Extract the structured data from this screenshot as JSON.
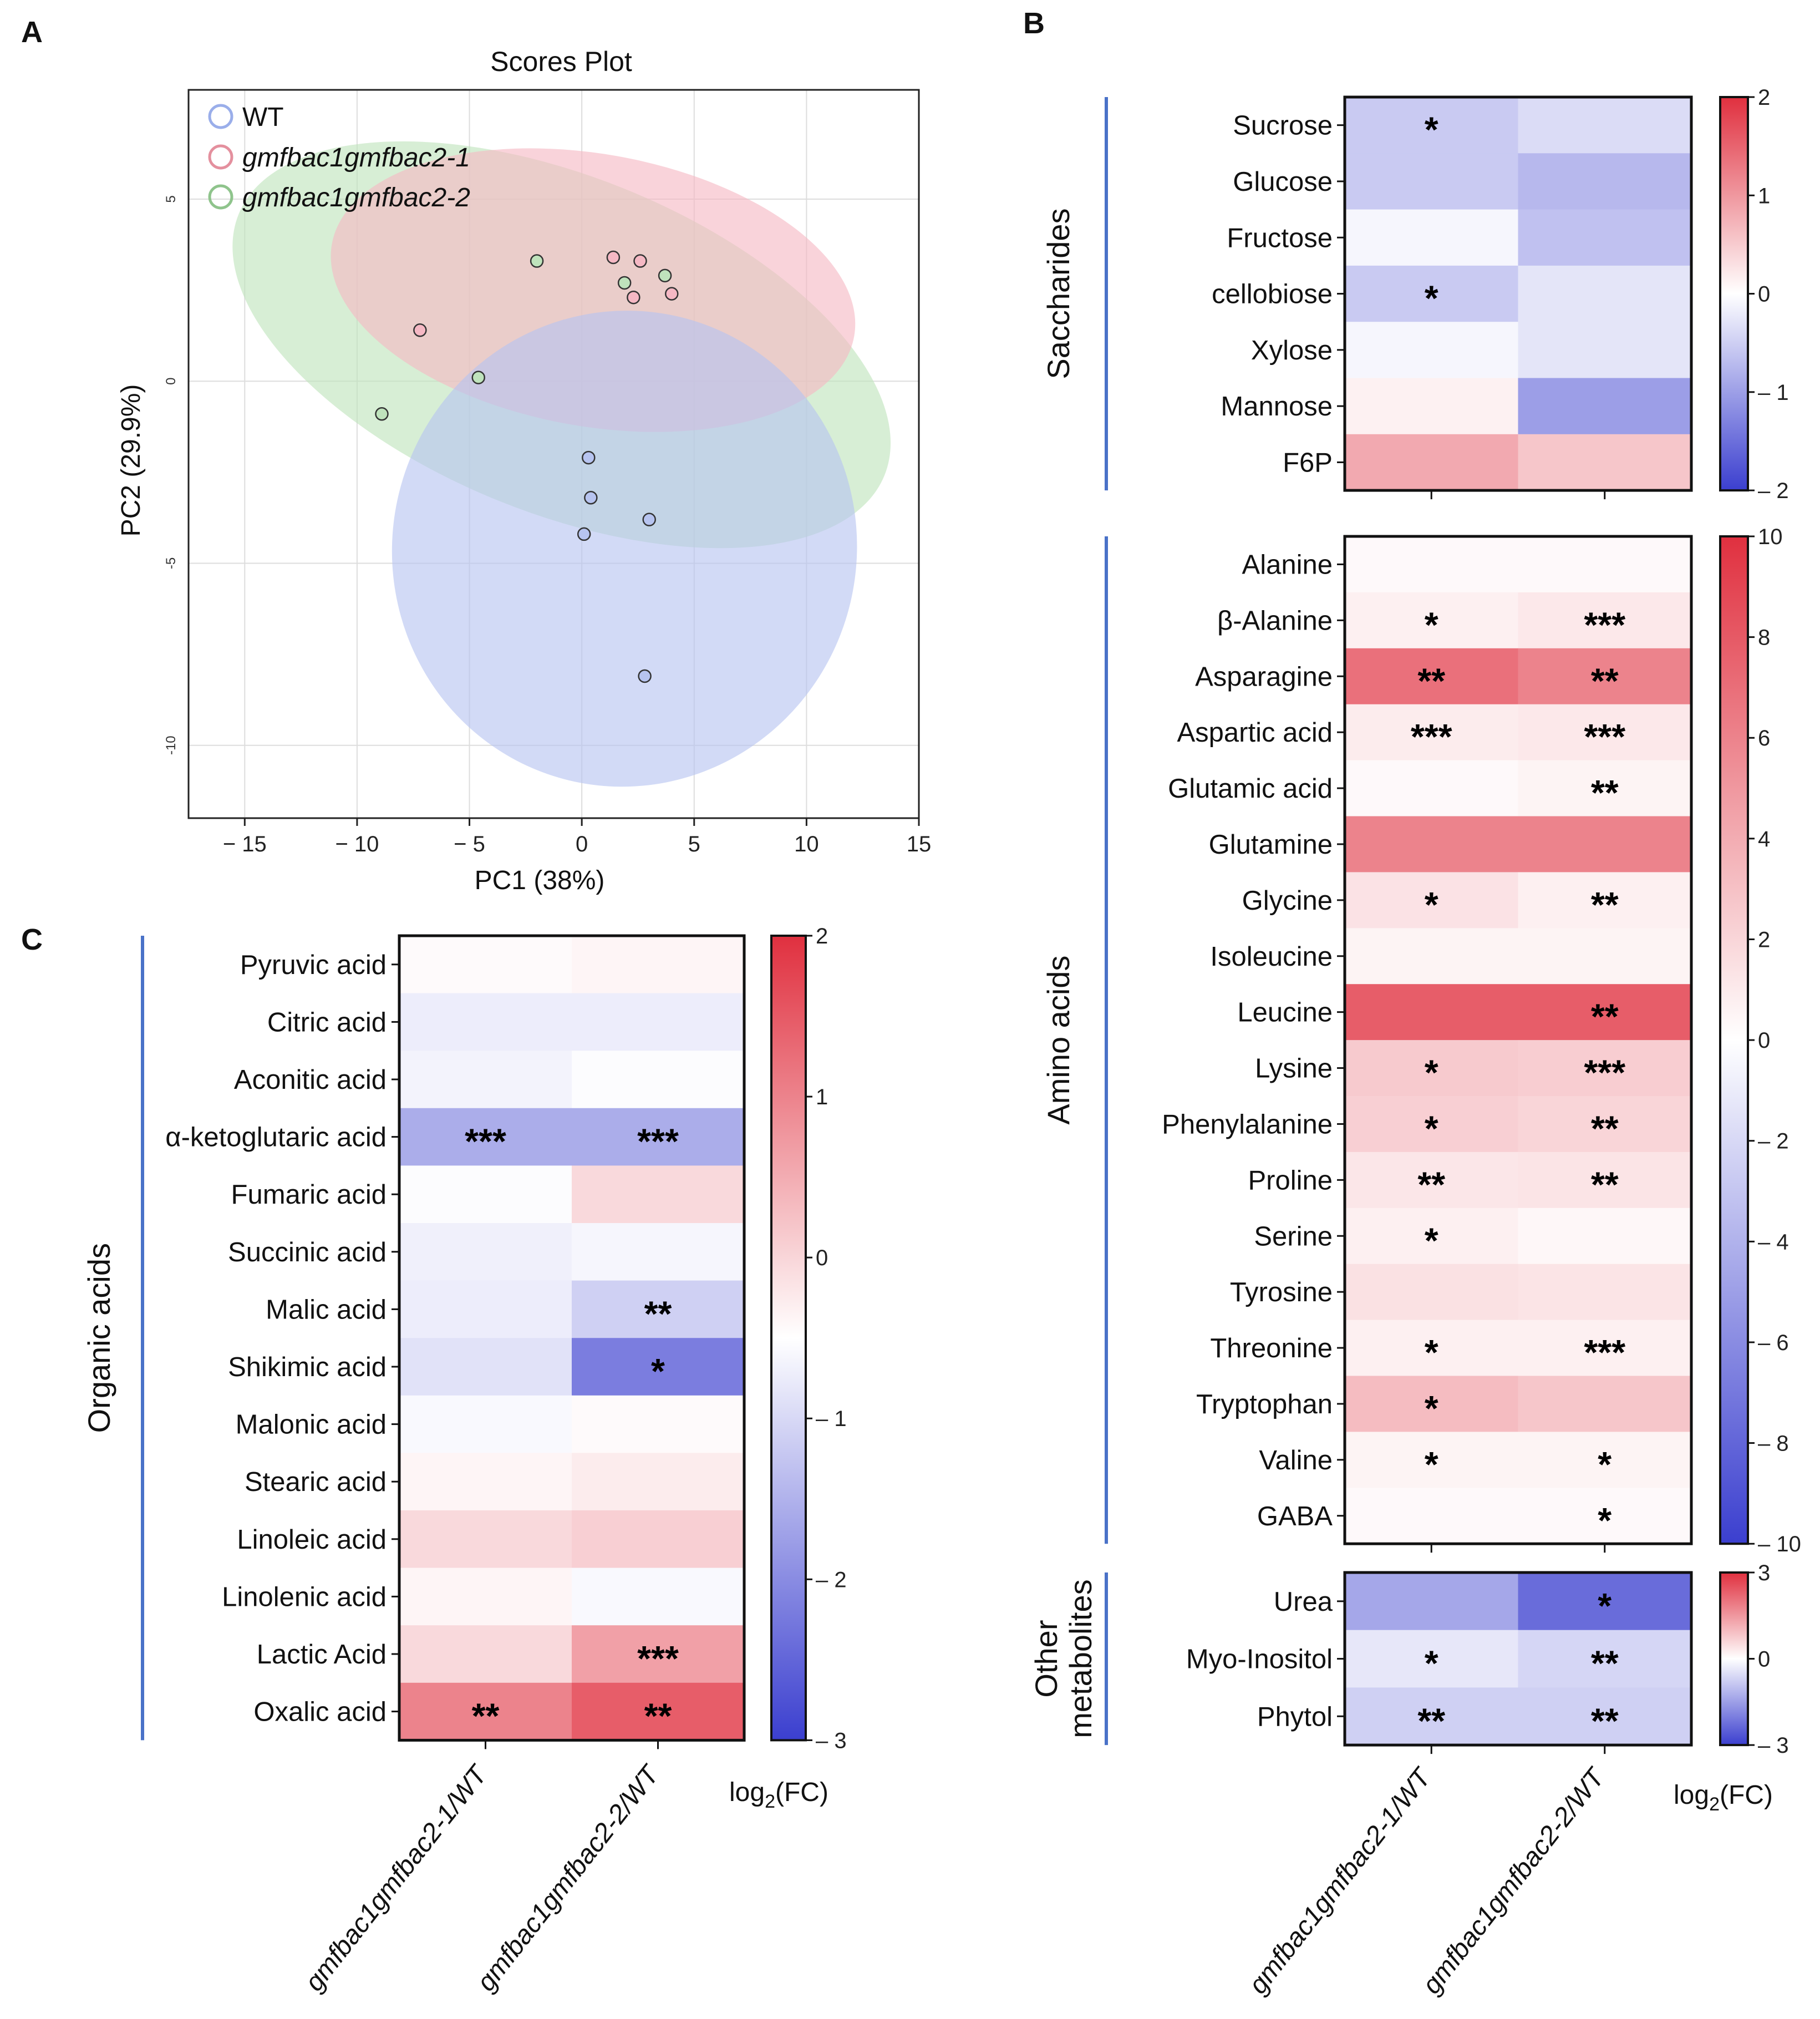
{
  "figure": {
    "panel_labels": [
      "A",
      "B",
      "C"
    ],
    "legend_unit_label": "log",
    "legend_unit_sub": "2",
    "legend_unit_tail": "(FC)"
  },
  "colors": {
    "wt": "#5b7fd4",
    "line1": "#d9535f",
    "line2": "#4fa64f",
    "wt_fill": "#b7c4f0",
    "line1_fill": "#f5b8c4",
    "line2_fill": "#bfe3bc",
    "heat_neg": "#3b3fcf",
    "heat_mid": "#ffffff",
    "heat_pos": "#e0303f",
    "group_bar": "#4a72c8"
  },
  "chart_data": [
    {
      "id": "pca",
      "type": "scatter",
      "title": "Scores Plot",
      "xlabel": "PC1 (38%)",
      "ylabel": "PC2 (29.9%)",
      "xlim": [
        -17.5,
        15
      ],
      "ylim": [
        -12,
        8
      ],
      "xticks": [
        -15,
        -10,
        -5,
        0,
        5,
        10,
        15
      ],
      "xtick_labels": [
        "− 15",
        "− 10",
        "− 5",
        "0",
        "5",
        "10",
        "15"
      ],
      "yticks": [
        5,
        0,
        -5,
        -10
      ],
      "ytick_labels": [
        "5",
        "0",
        "-5",
        "-10"
      ],
      "grid": true,
      "legend_position": "top-left",
      "series": [
        {
          "name": "WT",
          "italic": false,
          "color_key": "wt",
          "points": [
            [
              0.3,
              -2.1
            ],
            [
              0.4,
              -3.2
            ],
            [
              0.1,
              -4.2
            ],
            [
              3.0,
              -3.8
            ],
            [
              2.8,
              -8.1
            ]
          ],
          "ellipse": {
            "center": [
              1.9,
              -4.6
            ],
            "rx": 10.6,
            "ry": 2.9,
            "angle_deg": -78
          }
        },
        {
          "name": "gmfbac1gmfbac2-1",
          "italic": true,
          "color_key": "line1",
          "points": [
            [
              1.4,
              3.4
            ],
            [
              2.6,
              3.3
            ],
            [
              2.3,
              2.3
            ],
            [
              4.0,
              2.4
            ],
            [
              -7.2,
              1.4
            ]
          ],
          "ellipse": {
            "center": [
              0.5,
              2.5
            ],
            "rx": 11.8,
            "ry": 1.7,
            "angle_deg": 10
          }
        },
        {
          "name": "gmfbac1gmfbac2-2",
          "italic": true,
          "color_key": "line2",
          "points": [
            [
              -2.0,
              3.3
            ],
            [
              1.9,
              2.7
            ],
            [
              3.7,
              2.9
            ],
            [
              -4.6,
              0.1
            ],
            [
              -8.9,
              -0.9
            ]
          ],
          "ellipse": {
            "center": [
              -0.9,
              1.0
            ],
            "rx": 15.5,
            "ry": 2.1,
            "angle_deg": 22
          }
        }
      ]
    },
    {
      "id": "organic",
      "type": "heatmap",
      "panel": "C",
      "group_label": "Organic acids",
      "columns": [
        "gmfbac1gmfbac2-1/WT",
        "gmfbac1gmfbac2-2/WT"
      ],
      "colorbar": {
        "min": -3,
        "max": 2,
        "ticks": [
          2,
          1,
          0,
          -1,
          -2,
          -3
        ],
        "tick_labels": [
          "2",
          "1",
          "0",
          "– 1",
          "– 2",
          "– 3"
        ]
      },
      "rows": [
        "Pyruvic acid",
        "Citric acid",
        "Aconitic acid",
        "α-ketoglutaric acid",
        "Fumaric acid",
        "Succinic acid",
        "Malic acid",
        "Shikimic acid",
        "Malonic acid",
        "Stearic acid",
        "Linoleic acid",
        "Linolenic acid",
        "Lactic Acid",
        "Oxalic acid"
      ],
      "values": [
        [
          0.05,
          0.1
        ],
        [
          -0.3,
          -0.3
        ],
        [
          -0.2,
          -0.05
        ],
        [
          -1.4,
          -1.4
        ],
        [
          -0.05,
          0.4
        ],
        [
          -0.25,
          -0.15
        ],
        [
          -0.3,
          -0.8
        ],
        [
          -0.5,
          -2.2
        ],
        [
          -0.1,
          0.05
        ],
        [
          0.1,
          0.2
        ],
        [
          0.4,
          0.5
        ],
        [
          0.1,
          -0.1
        ],
        [
          0.4,
          1.0
        ],
        [
          1.3,
          1.7
        ]
      ],
      "stars": [
        [
          "",
          ""
        ],
        [
          "",
          ""
        ],
        [
          "",
          ""
        ],
        [
          "***",
          "***"
        ],
        [
          "",
          ""
        ],
        [
          "",
          ""
        ],
        [
          "",
          "**"
        ],
        [
          "",
          "*"
        ],
        [
          "",
          ""
        ],
        [
          "",
          ""
        ],
        [
          "",
          ""
        ],
        [
          "",
          ""
        ],
        [
          "",
          "***"
        ],
        [
          "**",
          "**"
        ]
      ]
    },
    {
      "id": "saccharides",
      "type": "heatmap",
      "panel": "B",
      "group_label": "Saccharides",
      "columns": [
        "gmfbac1gmfbac2-1/WT",
        "gmfbac1gmfbac2-2/WT"
      ],
      "colorbar": {
        "min": -2,
        "max": 2,
        "ticks": [
          2,
          1,
          0,
          -1,
          -2
        ],
        "tick_labels": [
          "2",
          "1",
          "0",
          "– 1",
          "– 2"
        ]
      },
      "rows": [
        "Sucrose",
        "Glucose",
        "Fructose",
        "cellobiose",
        "Xylose",
        "Mannose",
        "F6P"
      ],
      "values": [
        [
          -0.6,
          -0.4
        ],
        [
          -0.6,
          -0.8
        ],
        [
          -0.1,
          -0.7
        ],
        [
          -0.6,
          -0.3
        ],
        [
          -0.1,
          -0.3
        ],
        [
          0.15,
          -1.1
        ],
        [
          0.9,
          0.6
        ]
      ],
      "stars": [
        [
          "*",
          ""
        ],
        [
          "",
          ""
        ],
        [
          "",
          ""
        ],
        [
          "*",
          ""
        ],
        [
          "",
          ""
        ],
        [
          "",
          ""
        ],
        [
          "",
          ""
        ]
      ]
    },
    {
      "id": "amino",
      "type": "heatmap",
      "panel": "B",
      "group_label": "Amino acids",
      "columns": [
        "gmfbac1gmfbac2-1/WT",
        "gmfbac1gmfbac2-2/WT"
      ],
      "colorbar": {
        "min": -10,
        "max": 10,
        "ticks": [
          10,
          8,
          6,
          4,
          2,
          0,
          -2,
          -4,
          -6,
          -8,
          -10
        ],
        "tick_labels": [
          "10",
          "8",
          "6",
          "4",
          "2",
          "0",
          "– 2",
          "– 4",
          "– 6",
          "– 8",
          "– 10"
        ]
      },
      "rows": [
        "Alanine",
        "β-Alanine",
        "Asparagine",
        "Aspartic acid",
        "Glutamic acid",
        "Glutamine",
        "Glycine",
        "Isoleucine",
        "Leucine",
        "Lysine",
        "Phenylalanine",
        "Proline",
        "Serine",
        "Tyrosine",
        "Threonine",
        "Tryptophan",
        "Valine",
        "GABA"
      ],
      "values": [
        [
          0.3,
          0.3
        ],
        [
          0.8,
          1.2
        ],
        [
          7.5,
          6.5
        ],
        [
          1.0,
          1.2
        ],
        [
          0.3,
          0.6
        ],
        [
          6.5,
          6.5
        ],
        [
          1.5,
          0.8
        ],
        [
          0.6,
          0.6
        ],
        [
          8.5,
          8.5
        ],
        [
          2.8,
          2.6
        ],
        [
          2.5,
          2.2
        ],
        [
          1.3,
          1.4
        ],
        [
          0.8,
          0.4
        ],
        [
          1.6,
          1.4
        ],
        [
          0.8,
          0.8
        ],
        [
          3.5,
          3.0
        ],
        [
          0.6,
          0.6
        ],
        [
          0.3,
          0.3
        ]
      ],
      "stars": [
        [
          "",
          ""
        ],
        [
          "*",
          "***"
        ],
        [
          "**",
          "**"
        ],
        [
          "***",
          "***"
        ],
        [
          "",
          "**"
        ],
        [
          "",
          ""
        ],
        [
          "*",
          "**"
        ],
        [
          "",
          ""
        ],
        [
          "",
          "**"
        ],
        [
          "*",
          "***"
        ],
        [
          "*",
          "**"
        ],
        [
          "**",
          "**"
        ],
        [
          "*",
          ""
        ],
        [
          "",
          ""
        ],
        [
          "*",
          "***"
        ],
        [
          "*",
          ""
        ],
        [
          "*",
          "*"
        ],
        [
          "",
          "*"
        ]
      ]
    },
    {
      "id": "other",
      "type": "heatmap",
      "panel": "B",
      "group_label": "Other metabolites",
      "group_label_lines": [
        "Other",
        "metabolites"
      ],
      "columns": [
        "gmfbac1gmfbac2-1/WT",
        "gmfbac1gmfbac2-2/WT"
      ],
      "colorbar": {
        "min": -3,
        "max": 3,
        "ticks": [
          3,
          0,
          -3
        ],
        "tick_labels": [
          "3",
          "0",
          "– 3"
        ]
      },
      "rows": [
        "Urea",
        "Myo-Inositol",
        "Phytol"
      ],
      "values": [
        [
          -1.5,
          -2.5
        ],
        [
          -0.4,
          -0.7
        ],
        [
          -0.8,
          -0.8
        ]
      ],
      "stars": [
        [
          "",
          "*"
        ],
        [
          "*",
          "**"
        ],
        [
          "**",
          "**"
        ]
      ]
    }
  ]
}
